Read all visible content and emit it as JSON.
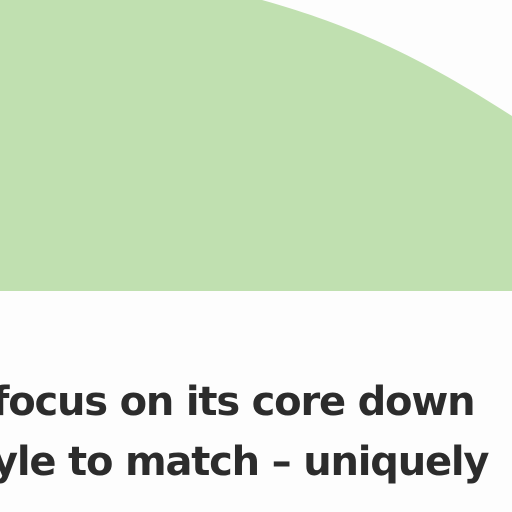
{
  "colors": {
    "hero_fill": "#c0e0b0",
    "background": "#fdfdfd",
    "headline_text": "#2c2c2c"
  },
  "article": {
    "headline_lines": [
      "focus on its core down",
      "yle to match – uniquely"
    ]
  }
}
